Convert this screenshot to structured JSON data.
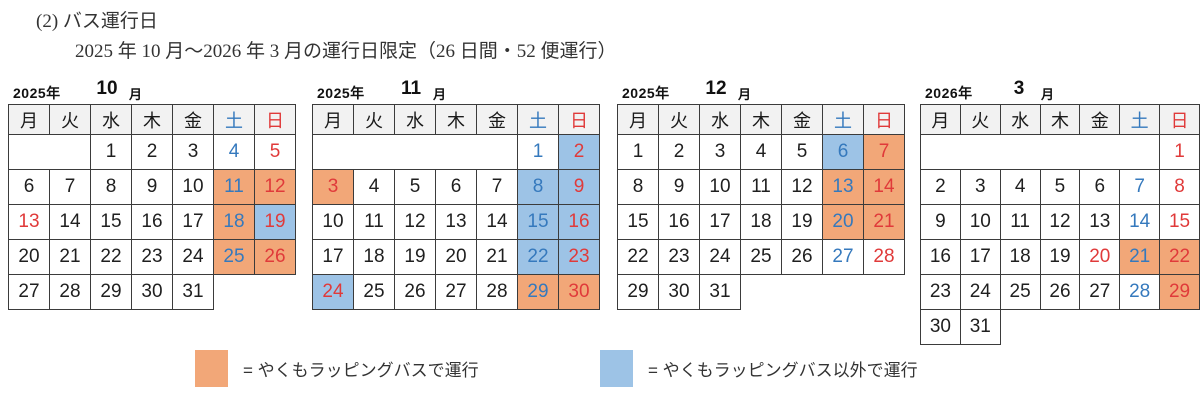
{
  "title": "(2) バス運行日",
  "subtitle": "2025 年 10 月～2026 年 3 月の運行日限定（26 日間・52 便運行）",
  "day_headers": [
    "月",
    "火",
    "水",
    "木",
    "金",
    "土",
    "日"
  ],
  "colors": {
    "wrapped_bus_bg": "#F2A778",
    "other_bus_bg": "#9DC3E6",
    "saturday_text": "#3579BD",
    "sunday_text": "#E03A3A",
    "weekday_header_bg": "#F2F2F2"
  },
  "months": [
    {
      "year": "2025年",
      "month": "10",
      "suffix": "月",
      "weeks": [
        [
          {
            "e": 2
          },
          {
            "d": "1"
          },
          {
            "d": "2"
          },
          {
            "d": "3"
          },
          {
            "d": "4",
            "c": "b"
          },
          {
            "d": "5",
            "c": "r"
          }
        ],
        [
          {
            "d": "6"
          },
          {
            "d": "7"
          },
          {
            "d": "8"
          },
          {
            "d": "9"
          },
          {
            "d": "10"
          },
          {
            "d": "11",
            "c": "b",
            "bg": "o"
          },
          {
            "d": "12",
            "c": "r",
            "bg": "o"
          }
        ],
        [
          {
            "d": "13",
            "c": "r"
          },
          {
            "d": "14"
          },
          {
            "d": "15"
          },
          {
            "d": "16"
          },
          {
            "d": "17"
          },
          {
            "d": "18",
            "c": "b",
            "bg": "o"
          },
          {
            "d": "19",
            "c": "r",
            "bg": "b"
          }
        ],
        [
          {
            "d": "20"
          },
          {
            "d": "21"
          },
          {
            "d": "22"
          },
          {
            "d": "23"
          },
          {
            "d": "24"
          },
          {
            "d": "25",
            "c": "b",
            "bg": "o"
          },
          {
            "d": "26",
            "c": "r",
            "bg": "o"
          }
        ],
        [
          {
            "d": "27"
          },
          {
            "d": "28"
          },
          {
            "d": "29"
          },
          {
            "d": "30"
          },
          {
            "d": "31"
          }
        ]
      ]
    },
    {
      "year": "2025年",
      "month": "11",
      "suffix": "月",
      "weeks": [
        [
          {
            "e": 5
          },
          {
            "d": "1",
            "c": "b"
          },
          {
            "d": "2",
            "c": "r",
            "bg": "b"
          }
        ],
        [
          {
            "d": "3",
            "c": "r",
            "bg": "o"
          },
          {
            "d": "4"
          },
          {
            "d": "5"
          },
          {
            "d": "6"
          },
          {
            "d": "7"
          },
          {
            "d": "8",
            "c": "b",
            "bg": "b"
          },
          {
            "d": "9",
            "c": "r",
            "bg": "b"
          }
        ],
        [
          {
            "d": "10"
          },
          {
            "d": "11"
          },
          {
            "d": "12"
          },
          {
            "d": "13"
          },
          {
            "d": "14"
          },
          {
            "d": "15",
            "c": "b",
            "bg": "b"
          },
          {
            "d": "16",
            "c": "r",
            "bg": "b"
          }
        ],
        [
          {
            "d": "17"
          },
          {
            "d": "18"
          },
          {
            "d": "19"
          },
          {
            "d": "20"
          },
          {
            "d": "21"
          },
          {
            "d": "22",
            "c": "b",
            "bg": "b"
          },
          {
            "d": "23",
            "c": "r",
            "bg": "b"
          }
        ],
        [
          {
            "d": "24",
            "c": "r",
            "bg": "b"
          },
          {
            "d": "25"
          },
          {
            "d": "26"
          },
          {
            "d": "27"
          },
          {
            "d": "28"
          },
          {
            "d": "29",
            "c": "b",
            "bg": "o"
          },
          {
            "d": "30",
            "c": "r",
            "bg": "o"
          }
        ]
      ]
    },
    {
      "year": "2025年",
      "month": "12",
      "suffix": "月",
      "weeks": [
        [
          {
            "d": "1"
          },
          {
            "d": "2"
          },
          {
            "d": "3"
          },
          {
            "d": "4"
          },
          {
            "d": "5"
          },
          {
            "d": "6",
            "c": "b",
            "bg": "b"
          },
          {
            "d": "7",
            "c": "r",
            "bg": "o"
          }
        ],
        [
          {
            "d": "8"
          },
          {
            "d": "9"
          },
          {
            "d": "10"
          },
          {
            "d": "11"
          },
          {
            "d": "12"
          },
          {
            "d": "13",
            "c": "b",
            "bg": "o"
          },
          {
            "d": "14",
            "c": "r",
            "bg": "o"
          }
        ],
        [
          {
            "d": "15"
          },
          {
            "d": "16"
          },
          {
            "d": "17"
          },
          {
            "d": "18"
          },
          {
            "d": "19"
          },
          {
            "d": "20",
            "c": "b",
            "bg": "o"
          },
          {
            "d": "21",
            "c": "r",
            "bg": "o"
          }
        ],
        [
          {
            "d": "22"
          },
          {
            "d": "23"
          },
          {
            "d": "24"
          },
          {
            "d": "25"
          },
          {
            "d": "26"
          },
          {
            "d": "27",
            "c": "b"
          },
          {
            "d": "28",
            "c": "r"
          }
        ],
        [
          {
            "d": "29"
          },
          {
            "d": "30"
          },
          {
            "d": "31"
          }
        ]
      ]
    },
    {
      "year": "2026年",
      "month": "3",
      "suffix": "月",
      "weeks": [
        [
          {
            "e": 6
          },
          {
            "d": "1",
            "c": "r"
          }
        ],
        [
          {
            "d": "2"
          },
          {
            "d": "3"
          },
          {
            "d": "4"
          },
          {
            "d": "5"
          },
          {
            "d": "6"
          },
          {
            "d": "7",
            "c": "b"
          },
          {
            "d": "8",
            "c": "r"
          }
        ],
        [
          {
            "d": "9"
          },
          {
            "d": "10"
          },
          {
            "d": "11"
          },
          {
            "d": "12"
          },
          {
            "d": "13"
          },
          {
            "d": "14",
            "c": "b"
          },
          {
            "d": "15",
            "c": "r"
          }
        ],
        [
          {
            "d": "16"
          },
          {
            "d": "17"
          },
          {
            "d": "18"
          },
          {
            "d": "19"
          },
          {
            "d": "20",
            "c": "r"
          },
          {
            "d": "21",
            "c": "b",
            "bg": "o"
          },
          {
            "d": "22",
            "c": "r",
            "bg": "o"
          }
        ],
        [
          {
            "d": "23"
          },
          {
            "d": "24"
          },
          {
            "d": "25"
          },
          {
            "d": "26"
          },
          {
            "d": "27"
          },
          {
            "d": "28",
            "c": "b"
          },
          {
            "d": "29",
            "c": "r",
            "bg": "o"
          }
        ],
        [
          {
            "d": "30"
          },
          {
            "d": "31"
          }
        ]
      ]
    }
  ],
  "legend": [
    {
      "color": "#F2A778",
      "label": "= やくもラッピングバスで運行"
    },
    {
      "color": "#9DC3E6",
      "label": "= やくもラッピングバス以外で運行"
    }
  ]
}
